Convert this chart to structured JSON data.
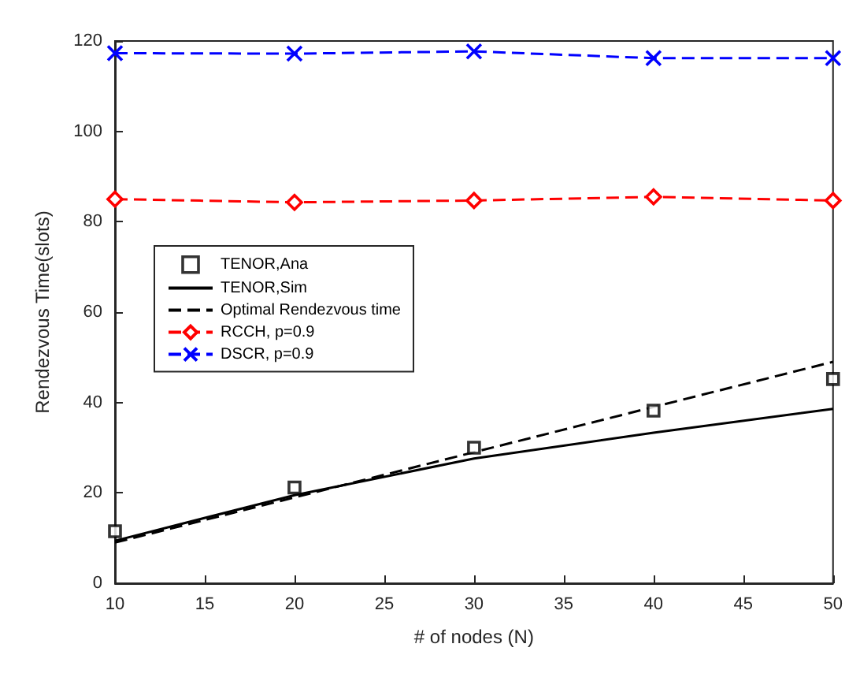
{
  "chart_data": {
    "type": "line",
    "xlabel": "# of nodes (N)",
    "ylabel": "Rendezvous Time(slots)",
    "x": [
      10,
      20,
      30,
      40,
      50
    ],
    "series": [
      {
        "name": "TENOR,Ana",
        "type": "scatter",
        "color": "#000000",
        "marker": "square",
        "values": [
          11.5,
          21.2,
          30,
          38.2,
          45.2
        ]
      },
      {
        "name": "TENOR,Sim",
        "color": "#000000",
        "marker": "none",
        "line_style": "solid",
        "values": [
          9.4,
          19.5,
          27.6,
          33.3,
          38.6
        ]
      },
      {
        "name": "Optimal Rendezvous time",
        "color": "#000000",
        "marker": "none",
        "line_style": "dashed",
        "values": [
          9,
          19,
          29,
          39,
          49
        ]
      },
      {
        "name": "RCCH, p=0.9",
        "color": "#ff0000",
        "marker": "diamond",
        "line_style": "dashed",
        "values": [
          85,
          84.3,
          84.7,
          85.5,
          84.7
        ]
      },
      {
        "name": "DSCR, p=0.9",
        "color": "#0000ff",
        "marker": "cross",
        "line_style": "dashed",
        "values": [
          117.3,
          117.2,
          117.7,
          116.2,
          116.2
        ]
      }
    ],
    "xlim": [
      10,
      50
    ],
    "xticks": [
      10,
      15,
      20,
      25,
      30,
      35,
      40,
      45,
      50
    ],
    "ylim": [
      0,
      120
    ],
    "yticks": [
      0,
      20,
      40,
      60,
      80,
      100,
      120
    ],
    "grid": false,
    "legend": "left"
  }
}
